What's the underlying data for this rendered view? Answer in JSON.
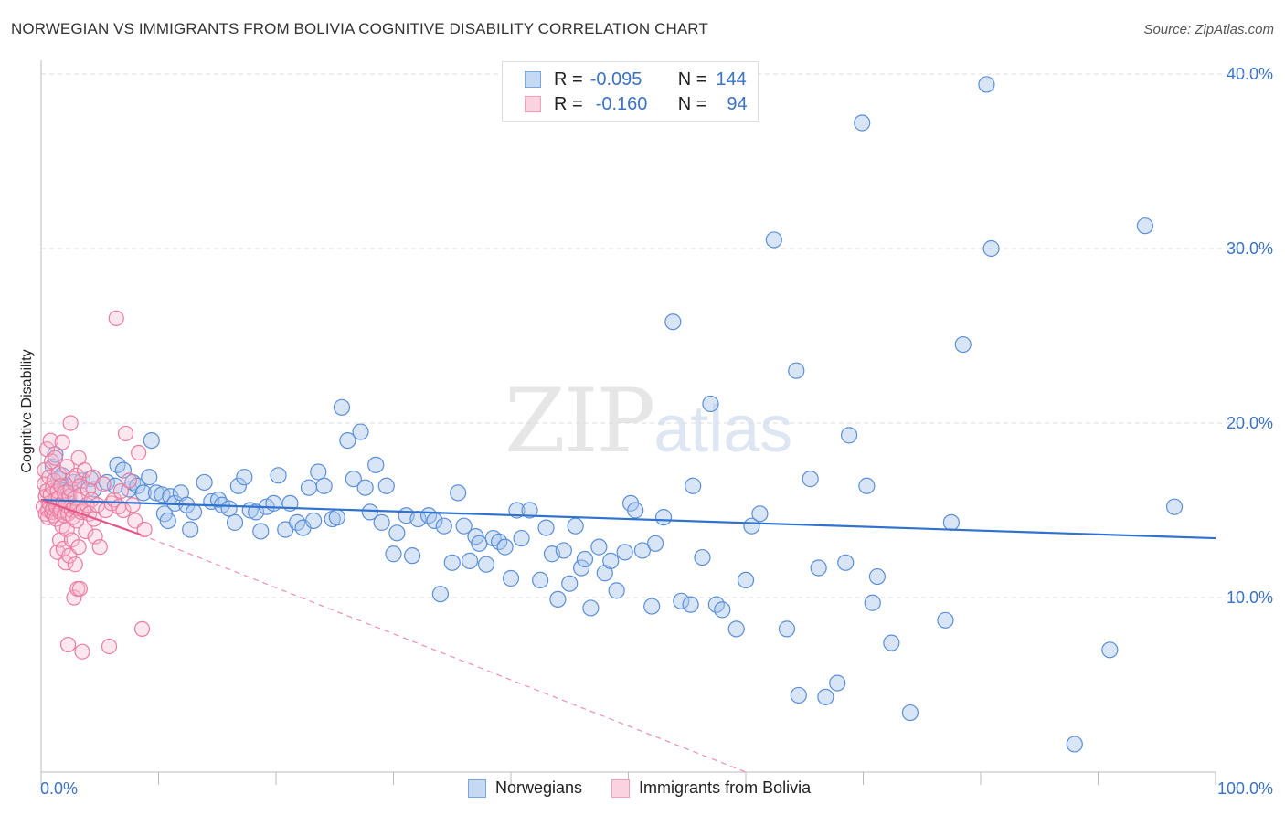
{
  "header": {
    "title": "NORWEGIAN VS IMMIGRANTS FROM BOLIVIA COGNITIVE DISABILITY CORRELATION CHART",
    "source": "Source: ZipAtlas.com"
  },
  "legend": {
    "r_label": "R =",
    "n_label": "N =",
    "rows": [
      {
        "r": "-0.095",
        "n": "144",
        "color": "#7aa6e0"
      },
      {
        "r": "-0.160",
        "n": "94",
        "color": "#f2a0bc"
      }
    ]
  },
  "watermark": {
    "zip": "ZIP",
    "atlas": "atlas"
  },
  "colors": {
    "blue": "#4a84d4",
    "blue_fill": "#a9c6ee",
    "pink": "#e8648e",
    "pink_fill": "#f6b9cd",
    "axis_text": "#3a72c8",
    "grid": "#dcdcdc"
  },
  "chart_data": {
    "type": "scatter",
    "title": "NORWEGIAN VS IMMIGRANTS FROM BOLIVIA COGNITIVE DISABILITY CORRELATION CHART",
    "xlabel": "",
    "ylabel": "Cognitive Disability",
    "xlim": [
      0,
      100
    ],
    "ylim": [
      0,
      40
    ],
    "x_tick_labels": [
      "0.0%",
      "100.0%"
    ],
    "y_ticks": [
      {
        "value": 10,
        "label": "10.0%"
      },
      {
        "value": 20,
        "label": "20.0%"
      },
      {
        "value": 30,
        "label": "30.0%"
      },
      {
        "value": 40,
        "label": "40.0%"
      }
    ],
    "grid": true,
    "series": [
      {
        "name": "Norwegians",
        "color": "#4a84d4",
        "r": -0.095,
        "n": 144,
        "trend": {
          "x0": 0,
          "y0": 15.6,
          "x1": 100,
          "y1": 13.4,
          "style": "solid"
        },
        "points": [
          [
            1.0,
            17.5
          ],
          [
            1.2,
            18.2
          ],
          [
            1.5,
            16.8
          ],
          [
            1.8,
            17.0
          ],
          [
            2.0,
            16.3
          ],
          [
            2.3,
            16.0
          ],
          [
            2.8,
            16.6
          ],
          [
            3.5,
            16.7
          ],
          [
            4.2,
            16.8
          ],
          [
            4.5,
            16.2
          ],
          [
            5.6,
            16.6
          ],
          [
            6.3,
            16.4
          ],
          [
            6.5,
            17.6
          ],
          [
            7.0,
            17.3
          ],
          [
            7.5,
            16.2
          ],
          [
            7.8,
            16.6
          ],
          [
            8.2,
            16.4
          ],
          [
            8.7,
            16.0
          ],
          [
            9.2,
            16.9
          ],
          [
            9.4,
            19.0
          ],
          [
            9.8,
            16.0
          ],
          [
            10.3,
            15.9
          ],
          [
            10.5,
            14.8
          ],
          [
            10.8,
            14.4
          ],
          [
            11.0,
            15.8
          ],
          [
            11.4,
            15.4
          ],
          [
            11.9,
            16.0
          ],
          [
            12.4,
            15.3
          ],
          [
            12.7,
            13.9
          ],
          [
            13.0,
            14.9
          ],
          [
            13.9,
            16.6
          ],
          [
            14.5,
            15.5
          ],
          [
            15.1,
            15.6
          ],
          [
            15.4,
            15.3
          ],
          [
            16.0,
            15.1
          ],
          [
            16.5,
            14.3
          ],
          [
            16.8,
            16.4
          ],
          [
            17.3,
            16.9
          ],
          [
            17.8,
            15.0
          ],
          [
            18.3,
            14.9
          ],
          [
            18.7,
            13.8
          ],
          [
            19.2,
            15.2
          ],
          [
            19.8,
            15.4
          ],
          [
            20.2,
            17.0
          ],
          [
            20.8,
            13.9
          ],
          [
            21.2,
            15.4
          ],
          [
            21.8,
            14.3
          ],
          [
            22.3,
            14.0
          ],
          [
            22.8,
            16.3
          ],
          [
            23.2,
            14.4
          ],
          [
            23.6,
            17.2
          ],
          [
            24.1,
            16.4
          ],
          [
            24.8,
            14.5
          ],
          [
            25.2,
            14.6
          ],
          [
            25.6,
            20.9
          ],
          [
            26.1,
            19.0
          ],
          [
            26.6,
            16.8
          ],
          [
            27.2,
            19.5
          ],
          [
            27.6,
            16.3
          ],
          [
            28.0,
            14.9
          ],
          [
            28.5,
            17.6
          ],
          [
            29.0,
            14.3
          ],
          [
            29.4,
            16.4
          ],
          [
            30.0,
            12.5
          ],
          [
            30.3,
            13.7
          ],
          [
            31.1,
            14.7
          ],
          [
            31.6,
            12.4
          ],
          [
            32.1,
            14.5
          ],
          [
            33.0,
            14.7
          ],
          [
            33.5,
            14.4
          ],
          [
            34.0,
            10.2
          ],
          [
            34.3,
            14.1
          ],
          [
            35.0,
            12.0
          ],
          [
            35.5,
            16.0
          ],
          [
            36.0,
            14.1
          ],
          [
            36.5,
            12.1
          ],
          [
            37.0,
            13.5
          ],
          [
            37.3,
            13.1
          ],
          [
            37.9,
            11.9
          ],
          [
            38.5,
            13.4
          ],
          [
            39.0,
            13.2
          ],
          [
            39.5,
            12.9
          ],
          [
            40.0,
            11.1
          ],
          [
            40.5,
            15.0
          ],
          [
            40.9,
            13.4
          ],
          [
            41.6,
            15.0
          ],
          [
            42.5,
            11.0
          ],
          [
            43.0,
            14.0
          ],
          [
            43.5,
            12.5
          ],
          [
            44.0,
            9.9
          ],
          [
            44.5,
            12.7
          ],
          [
            45.0,
            10.8
          ],
          [
            45.5,
            14.1
          ],
          [
            46.0,
            11.7
          ],
          [
            46.3,
            12.2
          ],
          [
            46.8,
            9.4
          ],
          [
            47.5,
            12.9
          ],
          [
            48.0,
            11.4
          ],
          [
            48.5,
            12.1
          ],
          [
            49.0,
            10.4
          ],
          [
            49.7,
            12.6
          ],
          [
            50.2,
            15.4
          ],
          [
            50.6,
            15.0
          ],
          [
            51.2,
            12.7
          ],
          [
            52.0,
            9.5
          ],
          [
            52.3,
            13.1
          ],
          [
            53.0,
            14.6
          ],
          [
            53.8,
            25.8
          ],
          [
            54.5,
            9.8
          ],
          [
            55.3,
            9.6
          ],
          [
            55.5,
            16.4
          ],
          [
            56.3,
            12.3
          ],
          [
            57.0,
            21.1
          ],
          [
            57.5,
            9.6
          ],
          [
            58.0,
            9.3
          ],
          [
            59.2,
            8.2
          ],
          [
            60.0,
            11.0
          ],
          [
            60.5,
            14.1
          ],
          [
            61.2,
            14.8
          ],
          [
            62.4,
            30.5
          ],
          [
            63.5,
            8.2
          ],
          [
            64.3,
            23.0
          ],
          [
            64.5,
            4.4
          ],
          [
            65.5,
            16.8
          ],
          [
            66.2,
            11.7
          ],
          [
            66.8,
            4.3
          ],
          [
            67.8,
            5.1
          ],
          [
            68.5,
            12.0
          ],
          [
            68.8,
            19.3
          ],
          [
            69.9,
            37.2
          ],
          [
            70.3,
            16.4
          ],
          [
            70.8,
            9.7
          ],
          [
            71.2,
            11.2
          ],
          [
            72.4,
            7.4
          ],
          [
            74.0,
            3.4
          ],
          [
            77.0,
            8.7
          ],
          [
            77.5,
            14.3
          ],
          [
            78.5,
            24.5
          ],
          [
            80.5,
            39.4
          ],
          [
            80.9,
            30.0
          ],
          [
            88.0,
            1.6
          ],
          [
            91.0,
            7.0
          ],
          [
            94.0,
            31.3
          ],
          [
            96.5,
            15.2
          ]
        ]
      },
      {
        "name": "Immigrants from Bolivia",
        "color": "#e8648e",
        "r": -0.16,
        "n": 94,
        "trend": {
          "x0": 0,
          "y0": 15.6,
          "x1": 8.5,
          "y1": 13.6,
          "style": "solid"
        },
        "trend_extension": {
          "x0": 8.5,
          "y0": 13.6,
          "x1": 60.0,
          "y1": 0.0,
          "style": "dashed"
        },
        "points": [
          [
            0.2,
            15.2
          ],
          [
            0.3,
            16.5
          ],
          [
            0.3,
            17.3
          ],
          [
            0.4,
            14.8
          ],
          [
            0.4,
            15.8
          ],
          [
            0.5,
            18.5
          ],
          [
            0.5,
            16.1
          ],
          [
            0.6,
            15.0
          ],
          [
            0.6,
            14.6
          ],
          [
            0.7,
            16.9
          ],
          [
            0.7,
            15.4
          ],
          [
            0.8,
            19.0
          ],
          [
            0.8,
            15.9
          ],
          [
            0.9,
            14.9
          ],
          [
            0.9,
            17.8
          ],
          [
            1.0,
            16.3
          ],
          [
            1.0,
            15.1
          ],
          [
            1.1,
            14.7
          ],
          [
            1.1,
            16.7
          ],
          [
            1.2,
            15.6
          ],
          [
            1.2,
            18.0
          ],
          [
            1.3,
            15.2
          ],
          [
            1.3,
            14.5
          ],
          [
            1.4,
            16.1
          ],
          [
            1.4,
            12.6
          ],
          [
            1.5,
            15.7
          ],
          [
            1.5,
            17.1
          ],
          [
            1.6,
            14.9
          ],
          [
            1.6,
            13.3
          ],
          [
            1.7,
            16.4
          ],
          [
            1.7,
            15.0
          ],
          [
            1.8,
            14.1
          ],
          [
            1.8,
            18.9
          ],
          [
            1.9,
            15.5
          ],
          [
            1.9,
            12.8
          ],
          [
            2.0,
            16.0
          ],
          [
            2.0,
            14.7
          ],
          [
            2.1,
            12.0
          ],
          [
            2.1,
            15.3
          ],
          [
            2.2,
            13.9
          ],
          [
            2.2,
            17.5
          ],
          [
            2.3,
            14.8
          ],
          [
            2.3,
            7.3
          ],
          [
            2.4,
            15.8
          ],
          [
            2.4,
            12.4
          ],
          [
            2.5,
            16.2
          ],
          [
            2.5,
            20.0
          ],
          [
            2.6,
            15.0
          ],
          [
            2.6,
            13.3
          ],
          [
            2.7,
            14.6
          ],
          [
            2.7,
            16.8
          ],
          [
            2.8,
            15.2
          ],
          [
            2.8,
            10.0
          ],
          [
            2.9,
            15.7
          ],
          [
            2.9,
            11.9
          ],
          [
            3.0,
            14.4
          ],
          [
            3.0,
            17.0
          ],
          [
            3.1,
            10.5
          ],
          [
            3.1,
            15.1
          ],
          [
            3.2,
            18.0
          ],
          [
            3.2,
            12.9
          ],
          [
            3.3,
            16.4
          ],
          [
            3.3,
            10.5
          ],
          [
            3.4,
            14.9
          ],
          [
            3.4,
            15.9
          ],
          [
            3.5,
            6.9
          ],
          [
            3.6,
            15.0
          ],
          [
            3.7,
            17.3
          ],
          [
            3.8,
            13.8
          ],
          [
            3.9,
            15.3
          ],
          [
            4.0,
            16.2
          ],
          [
            4.1,
            14.8
          ],
          [
            4.3,
            15.6
          ],
          [
            4.4,
            16.9
          ],
          [
            4.5,
            14.5
          ],
          [
            4.6,
            13.5
          ],
          [
            4.8,
            15.3
          ],
          [
            5.0,
            12.9
          ],
          [
            5.3,
            16.5
          ],
          [
            5.5,
            15.0
          ],
          [
            5.8,
            7.2
          ],
          [
            6.0,
            15.4
          ],
          [
            6.2,
            15.6
          ],
          [
            6.4,
            26.0
          ],
          [
            6.6,
            15.2
          ],
          [
            6.8,
            16.1
          ],
          [
            7.0,
            15.0
          ],
          [
            7.2,
            19.4
          ],
          [
            7.5,
            16.7
          ],
          [
            7.8,
            15.3
          ],
          [
            8.0,
            14.4
          ],
          [
            8.3,
            18.3
          ],
          [
            8.6,
            8.2
          ],
          [
            8.8,
            13.9
          ]
        ]
      }
    ]
  },
  "bottom_legend": {
    "items": [
      {
        "label": "Norwegians",
        "color": "#7aa6e0"
      },
      {
        "label": "Immigrants from Bolivia",
        "color": "#f2a0bc"
      }
    ]
  }
}
